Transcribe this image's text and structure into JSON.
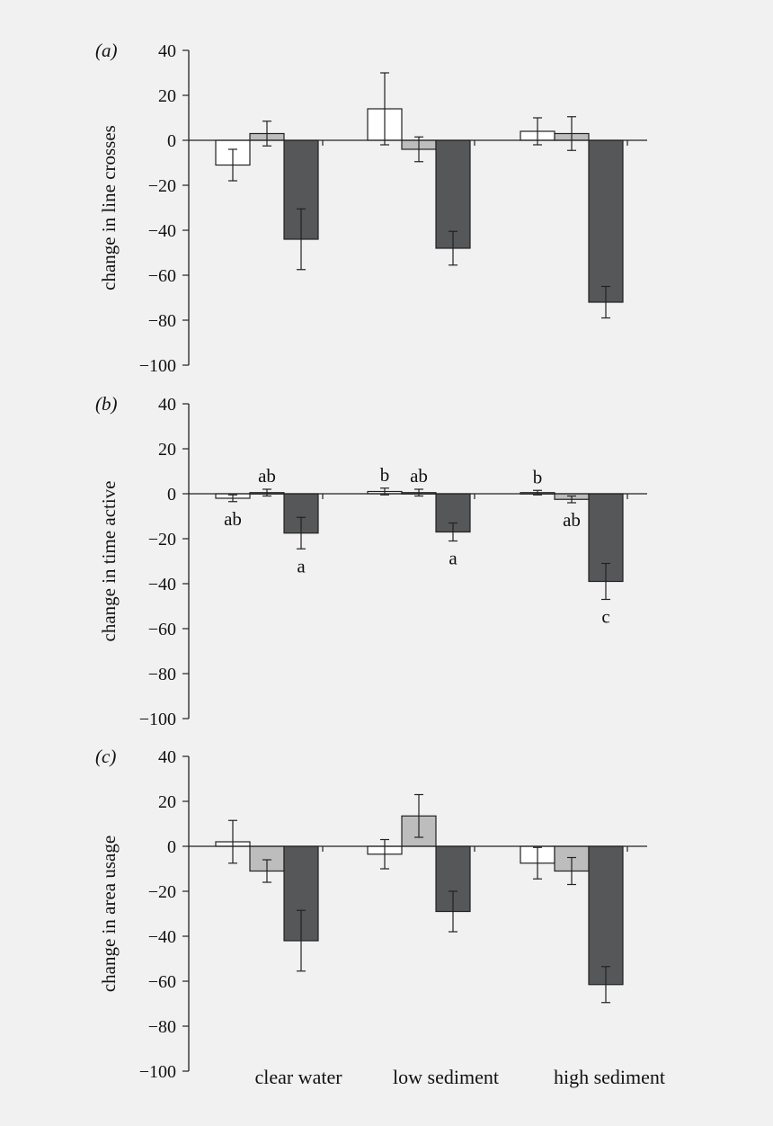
{
  "chart_data": [
    {
      "type": "bar",
      "panel_label": "(a)",
      "ylabel": "change in line crosses",
      "ylim": [
        -100,
        40
      ],
      "yticks": [
        40,
        20,
        0,
        -20,
        -40,
        -60,
        -80,
        -100
      ],
      "categories": [
        "clear water",
        "low sediment",
        "high sediment"
      ],
      "series": [
        {
          "color": "#ffffff",
          "values": [
            -11,
            14,
            4
          ],
          "errors": [
            7,
            16,
            6
          ]
        },
        {
          "color": "#bdbdbd",
          "values": [
            3,
            -4,
            3
          ],
          "errors": [
            5.5,
            5.5,
            7.5
          ]
        },
        {
          "color": "#555759",
          "values": [
            -44,
            -48,
            -72
          ],
          "errors": [
            13.5,
            7.5,
            7
          ]
        }
      ],
      "sig_labels": []
    },
    {
      "type": "bar",
      "panel_label": "(b)",
      "ylabel": "change in time active",
      "ylim": [
        -100,
        40
      ],
      "yticks": [
        40,
        20,
        0,
        -20,
        -40,
        -60,
        -80,
        -100
      ],
      "categories": [
        "clear water",
        "low sediment",
        "high sediment"
      ],
      "series": [
        {
          "color": "#ffffff",
          "values": [
            -2,
            1,
            0.5
          ],
          "errors": [
            1.5,
            1.5,
            1
          ]
        },
        {
          "color": "#bdbdbd",
          "values": [
            0.5,
            0.5,
            -2.5
          ],
          "errors": [
            1.5,
            1.5,
            1.5
          ]
        },
        {
          "color": "#555759",
          "values": [
            -17.5,
            -17,
            -39
          ],
          "errors": [
            7,
            4,
            8
          ]
        }
      ],
      "sig_labels": [
        {
          "cat": 0,
          "series": 0,
          "text": "ab",
          "pos": "below"
        },
        {
          "cat": 0,
          "series": 1,
          "text": "ab",
          "pos": "above"
        },
        {
          "cat": 0,
          "series": 2,
          "text": "a",
          "pos": "below"
        },
        {
          "cat": 1,
          "series": 0,
          "text": "b",
          "pos": "above"
        },
        {
          "cat": 1,
          "series": 1,
          "text": "ab",
          "pos": "above"
        },
        {
          "cat": 1,
          "series": 2,
          "text": "a",
          "pos": "below"
        },
        {
          "cat": 2,
          "series": 0,
          "text": "b",
          "pos": "above"
        },
        {
          "cat": 2,
          "series": 1,
          "text": "ab",
          "pos": "below"
        },
        {
          "cat": 2,
          "series": 2,
          "text": "c",
          "pos": "below"
        }
      ]
    },
    {
      "type": "bar",
      "panel_label": "(c)",
      "ylabel": "change in area usage",
      "ylim": [
        -100,
        40
      ],
      "yticks": [
        40,
        20,
        0,
        -20,
        -40,
        -60,
        -80,
        -100
      ],
      "categories": [
        "clear water",
        "low sediment",
        "high sediment"
      ],
      "series": [
        {
          "color": "#ffffff",
          "values": [
            2,
            -3.5,
            -7.5
          ],
          "errors": [
            9.5,
            6.5,
            7
          ]
        },
        {
          "color": "#bdbdbd",
          "values": [
            -11,
            13.5,
            -11
          ],
          "errors": [
            5,
            9.5,
            6
          ]
        },
        {
          "color": "#555759",
          "values": [
            -42,
            -29,
            -61.5
          ],
          "errors": [
            13.5,
            9,
            8
          ]
        }
      ],
      "sig_labels": []
    }
  ]
}
